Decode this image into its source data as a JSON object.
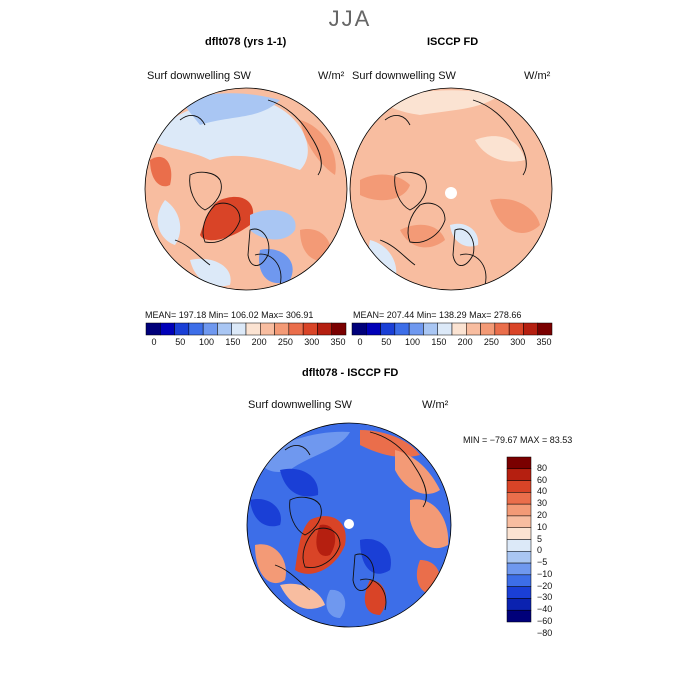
{
  "season_title": "JJA",
  "panels": {
    "model": {
      "title": "dflt078 (yrs 1-1)",
      "variable": "Surf downwelling SW",
      "units": "W/m²",
      "stats": "MEAN= 197.18   Min= 106.02   Max= 306.91",
      "colorbar_labels": [
        "0",
        "50",
        "100",
        "150",
        "200",
        "250",
        "300",
        "350"
      ]
    },
    "obs": {
      "title": "ISCCP FD",
      "variable": "Surf downwelling SW",
      "units": "W/m²",
      "stats": "MEAN= 207.44   Min= 138.29   Max= 278.66",
      "colorbar_labels": [
        "0",
        "50",
        "100",
        "150",
        "200",
        "250",
        "300",
        "350"
      ]
    },
    "diff": {
      "title": "dflt078 - ISCCP FD",
      "variable": "Surf downwelling SW",
      "units": "W/m²",
      "stats": "MIN = −79.67  MAX =  83.53",
      "colorbar_labels": [
        "80",
        "60",
        "40",
        "30",
        "20",
        "10",
        "5",
        "0",
        "−5",
        "−10",
        "−20",
        "−30",
        "−40",
        "−60",
        "−80"
      ]
    }
  },
  "colors": {
    "abs_scale": [
      "#00007a",
      "#0000b8",
      "#1a3fd6",
      "#3d6ee8",
      "#6f98ef",
      "#a9c6f3",
      "#dce9f8",
      "#fbe3d2",
      "#f8bda0",
      "#f39a76",
      "#ea6e4b",
      "#d94427",
      "#b51f10",
      "#7a0000"
    ],
    "diff_scale": [
      "#7a0000",
      "#b51f10",
      "#d94427",
      "#ea6e4b",
      "#f39a76",
      "#f8bda0",
      "#fbe3d2",
      "#dce9f8",
      "#a9c6f3",
      "#6f98ef",
      "#3d6ee8",
      "#1a3fd6",
      "#0a22b0",
      "#00007a"
    ]
  }
}
